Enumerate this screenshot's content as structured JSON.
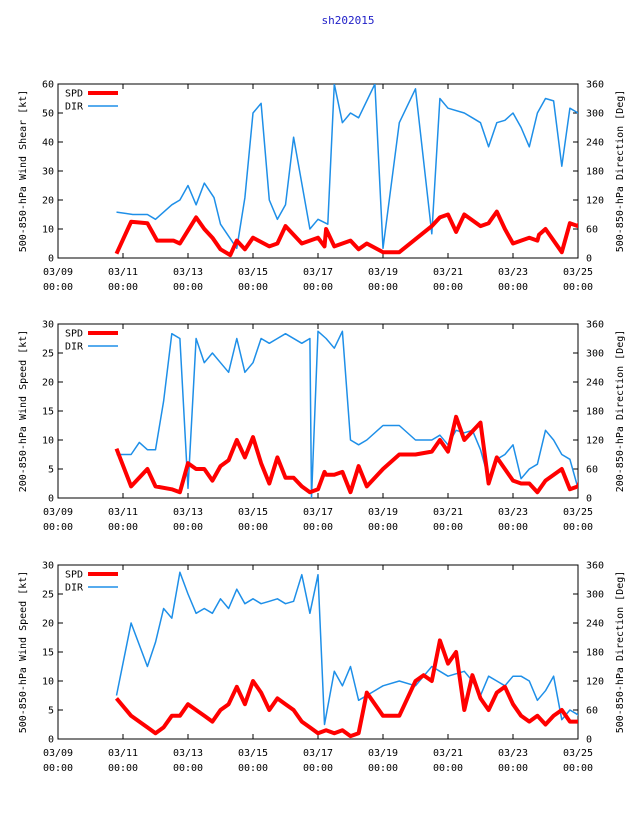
{
  "title": "sh202015",
  "colors": {
    "spd": "#ff0000",
    "dir": "#1e8fe8",
    "title": "#2020c8",
    "axis": "#000000"
  },
  "legend": {
    "spd": "SPD",
    "dir": "DIR"
  },
  "chart_data": [
    {
      "type": "line",
      "ylabel_left": "500-850-hPa Wind Shear [kt]",
      "ylabel_right": "500-850-hPa Direction [Deg]",
      "xlim": [
        0,
        16
      ],
      "ylim_left": [
        0,
        60
      ],
      "ylim_right": [
        0,
        360
      ],
      "yticks_left": [
        0,
        10,
        20,
        30,
        40,
        50,
        60
      ],
      "yticks_right": [
        0,
        60,
        120,
        180,
        240,
        300,
        360
      ],
      "xticks": [
        0,
        2,
        4,
        6,
        8,
        10,
        12,
        14,
        16
      ],
      "xticklabels": [
        [
          "03/09",
          "00:00"
        ],
        [
          "03/11",
          "00:00"
        ],
        [
          "03/13",
          "00:00"
        ],
        [
          "03/15",
          "00:00"
        ],
        [
          "03/17",
          "00:00"
        ],
        [
          "03/19",
          "00:00"
        ],
        [
          "03/21",
          "00:00"
        ],
        [
          "03/23",
          "00:00"
        ],
        [
          "03/25",
          "00:00"
        ]
      ],
      "series": [
        {
          "name": "SPD",
          "axis": "left",
          "x": [
            1.8,
            2.25,
            2.75,
            3.05,
            3.55,
            3.75,
            4.25,
            4.5,
            4.75,
            5.0,
            5.3,
            5.5,
            5.75,
            6.0,
            6.5,
            6.75,
            7.0,
            7.5,
            8.0,
            8.2,
            8.25,
            8.5,
            9.0,
            9.25,
            9.5,
            10.0,
            10.5,
            11.5,
            11.75,
            12.0,
            12.25,
            12.5,
            13.0,
            13.25,
            13.5,
            13.75,
            14.0,
            14.5,
            14.75,
            14.8,
            15.0,
            15.5,
            15.75,
            16.0,
            16.3,
            16.55
          ],
          "y": [
            1.5,
            12.5,
            12,
            6,
            6,
            5,
            14,
            10,
            7,
            3,
            1,
            6,
            3,
            7,
            4,
            5,
            11,
            5,
            7,
            4,
            10,
            4,
            6,
            3,
            5,
            2,
            2,
            11,
            14,
            15,
            9,
            15,
            11,
            12,
            16,
            10,
            5,
            7,
            6,
            8,
            10,
            2,
            12,
            11,
            17,
            13
          ]
        },
        {
          "name": "DIR",
          "axis": "right",
          "x": [
            1.8,
            2.3,
            2.75,
            3.0,
            3.5,
            3.75,
            4.0,
            4.25,
            4.5,
            4.8,
            5.0,
            5.3,
            5.5,
            5.75,
            6.0,
            6.25,
            6.5,
            6.75,
            7.0,
            7.25,
            7.75,
            8.0,
            8.3,
            8.5,
            8.75,
            9.0,
            9.25,
            9.75,
            10.0,
            10.5,
            11.0,
            11.5,
            11.75,
            12.0,
            12.5,
            12.75,
            13.0,
            13.25,
            13.5,
            13.75,
            14.0,
            14.25,
            14.5,
            14.75,
            15.0,
            15.25,
            15.5,
            15.75,
            16.0,
            16.5
          ],
          "y": [
            95,
            90,
            90,
            80,
            110,
            120,
            150,
            110,
            155,
            125,
            70,
            40,
            20,
            125,
            300,
            320,
            120,
            80,
            110,
            250,
            60,
            80,
            70,
            360,
            280,
            300,
            290,
            360,
            20,
            280,
            350,
            50,
            330,
            310,
            300,
            290,
            280,
            230,
            280,
            285,
            300,
            270,
            230,
            300,
            330,
            325,
            190,
            310,
            300,
            310
          ]
        }
      ]
    },
    {
      "type": "line",
      "ylabel_left": "200-850-hPa Wind Speed [kt]",
      "ylabel_right": "200-850-hPa Direction [Deg]",
      "xlim": [
        0,
        16
      ],
      "ylim_left": [
        0,
        30
      ],
      "ylim_right": [
        0,
        360
      ],
      "yticks_left": [
        0,
        5,
        10,
        15,
        20,
        25,
        30
      ],
      "yticks_right": [
        0,
        60,
        120,
        180,
        240,
        300,
        360
      ],
      "xticks": [
        0,
        2,
        4,
        6,
        8,
        10,
        12,
        14,
        16
      ],
      "xticklabels": [
        [
          "03/09",
          "00:00"
        ],
        [
          "03/11",
          "00:00"
        ],
        [
          "03/13",
          "00:00"
        ],
        [
          "03/15",
          "00:00"
        ],
        [
          "03/17",
          "00:00"
        ],
        [
          "03/19",
          "00:00"
        ],
        [
          "03/21",
          "00:00"
        ],
        [
          "03/23",
          "00:00"
        ],
        [
          "03/25",
          "00:00"
        ]
      ],
      "series": [
        {
          "name": "SPD",
          "axis": "left",
          "x": [
            1.8,
            2.25,
            2.75,
            3.0,
            3.5,
            3.75,
            4.0,
            4.25,
            4.5,
            4.75,
            5.0,
            5.25,
            5.5,
            5.75,
            6.0,
            6.25,
            6.5,
            6.75,
            7.0,
            7.25,
            7.5,
            7.75,
            8.0,
            8.2,
            8.25,
            8.5,
            8.75,
            9.0,
            9.25,
            9.5,
            10.0,
            10.5,
            11.0,
            11.5,
            11.75,
            12.0,
            12.25,
            12.5,
            13.0,
            13.25,
            13.5,
            14.0,
            14.25,
            14.5,
            14.75,
            15.0,
            15.5,
            15.75,
            16.0,
            16.25,
            16.5,
            16.55
          ],
          "y": [
            8.5,
            2,
            5,
            2,
            1.5,
            1,
            6,
            5,
            5,
            3,
            5.5,
            6.5,
            10,
            7,
            10.5,
            6,
            2.5,
            7,
            3.5,
            3.5,
            2,
            1,
            1.5,
            4.5,
            4,
            4,
            4.5,
            1,
            5.5,
            2,
            5,
            7.5,
            7.5,
            8,
            10,
            8,
            14,
            10,
            13,
            2.5,
            7,
            3,
            2.5,
            2.5,
            1,
            3,
            5,
            1.5,
            2,
            5.5,
            5.5,
            3.5
          ]
        },
        {
          "name": "DIR",
          "axis": "right",
          "x": [
            1.8,
            2.25,
            2.5,
            2.75,
            3.0,
            3.25,
            3.5,
            3.75,
            4.0,
            4.25,
            4.5,
            4.75,
            5.0,
            5.25,
            5.5,
            5.75,
            6.0,
            6.25,
            6.5,
            6.75,
            7.0,
            7.5,
            7.75,
            7.8,
            8.0,
            8.25,
            8.5,
            8.75,
            9.0,
            9.25,
            9.5,
            10.0,
            10.5,
            11.0,
            11.5,
            11.75,
            12.0,
            12.25,
            12.5,
            12.75,
            13.0,
            13.25,
            13.5,
            13.75,
            14.0,
            14.25,
            14.5,
            14.75,
            15.0,
            15.25,
            15.5,
            15.75,
            16.0,
            16.25
          ],
          "y": [
            90,
            90,
            115,
            100,
            100,
            200,
            340,
            330,
            20,
            330,
            280,
            300,
            280,
            260,
            330,
            260,
            280,
            330,
            320,
            330,
            340,
            320,
            330,
            0,
            345,
            330,
            310,
            345,
            120,
            110,
            120,
            150,
            150,
            120,
            120,
            130,
            110,
            140,
            135,
            140,
            100,
            40,
            80,
            90,
            110,
            40,
            60,
            70,
            140,
            120,
            90,
            80,
            20,
            350
          ]
        }
      ]
    },
    {
      "type": "line",
      "ylabel_left": "500-850-hPa Wind Speed [kt]",
      "ylabel_right": "500-850-hPa Direction [Deg]",
      "xlim": [
        0,
        16
      ],
      "ylim_left": [
        0,
        30
      ],
      "ylim_right": [
        0,
        360
      ],
      "yticks_left": [
        0,
        5,
        10,
        15,
        20,
        25,
        30
      ],
      "yticks_right": [
        0,
        60,
        120,
        180,
        240,
        300,
        360
      ],
      "xticks": [
        0,
        2,
        4,
        6,
        8,
        10,
        12,
        14,
        16
      ],
      "xticklabels": [
        [
          "03/09",
          "00:00"
        ],
        [
          "03/11",
          "00:00"
        ],
        [
          "03/13",
          "00:00"
        ],
        [
          "03/15",
          "00:00"
        ],
        [
          "03/17",
          "00:00"
        ],
        [
          "03/19",
          "00:00"
        ],
        [
          "03/21",
          "00:00"
        ],
        [
          "03/23",
          "00:00"
        ],
        [
          "03/25",
          "00:00"
        ]
      ],
      "series": [
        {
          "name": "SPD",
          "axis": "left",
          "x": [
            1.8,
            2.25,
            2.5,
            2.75,
            3.0,
            3.25,
            3.5,
            3.75,
            4.0,
            4.25,
            4.5,
            4.75,
            5.0,
            5.25,
            5.5,
            5.75,
            6.0,
            6.25,
            6.5,
            6.75,
            7.0,
            7.25,
            7.5,
            7.75,
            8.0,
            8.25,
            8.5,
            8.75,
            9.0,
            9.25,
            9.5,
            10.0,
            10.5,
            11.0,
            11.25,
            11.5,
            11.75,
            12.0,
            12.25,
            12.5,
            12.75,
            13.0,
            13.25,
            13.5,
            13.75,
            14.0,
            14.25,
            14.5,
            14.75,
            15.0,
            15.25,
            15.5,
            15.75,
            16.0
          ],
          "y": [
            7,
            4,
            3,
            2,
            1,
            2,
            4,
            4,
            6,
            5,
            4,
            3,
            5,
            6,
            9,
            6,
            10,
            8,
            5,
            7,
            6,
            5,
            3,
            2,
            1,
            1.5,
            1,
            1.5,
            0.5,
            1,
            8,
            4,
            4,
            10,
            11,
            10,
            17,
            13,
            15,
            5,
            11,
            7,
            5,
            8,
            9,
            6,
            4,
            3,
            4,
            2.5,
            4,
            5,
            3,
            3
          ]
        },
        {
          "name": "DIR",
          "axis": "right",
          "x": [
            1.8,
            2.25,
            2.75,
            3.0,
            3.25,
            3.5,
            3.75,
            4.0,
            4.25,
            4.5,
            4.75,
            5.0,
            5.25,
            5.5,
            5.75,
            6.0,
            6.25,
            6.5,
            6.75,
            7.0,
            7.25,
            7.5,
            7.75,
            8.0,
            8.2,
            8.5,
            8.75,
            9.0,
            9.25,
            9.5,
            10.0,
            10.5,
            11.0,
            11.25,
            11.5,
            11.75,
            12.0,
            12.5,
            12.75,
            13.0,
            13.25,
            13.5,
            13.75,
            14.0,
            14.25,
            14.5,
            14.75,
            15.0,
            15.25,
            15.5,
            15.75,
            16.0,
            16.25
          ],
          "y": [
            90,
            240,
            150,
            200,
            270,
            250,
            345,
            300,
            260,
            270,
            260,
            290,
            270,
            310,
            280,
            290,
            280,
            285,
            290,
            280,
            285,
            340,
            260,
            340,
            30,
            140,
            110,
            150,
            80,
            90,
            110,
            120,
            110,
            130,
            150,
            140,
            130,
            140,
            120,
            90,
            130,
            120,
            110,
            130,
            130,
            120,
            80,
            100,
            130,
            40,
            60,
            50,
            20
          ]
        }
      ]
    }
  ]
}
